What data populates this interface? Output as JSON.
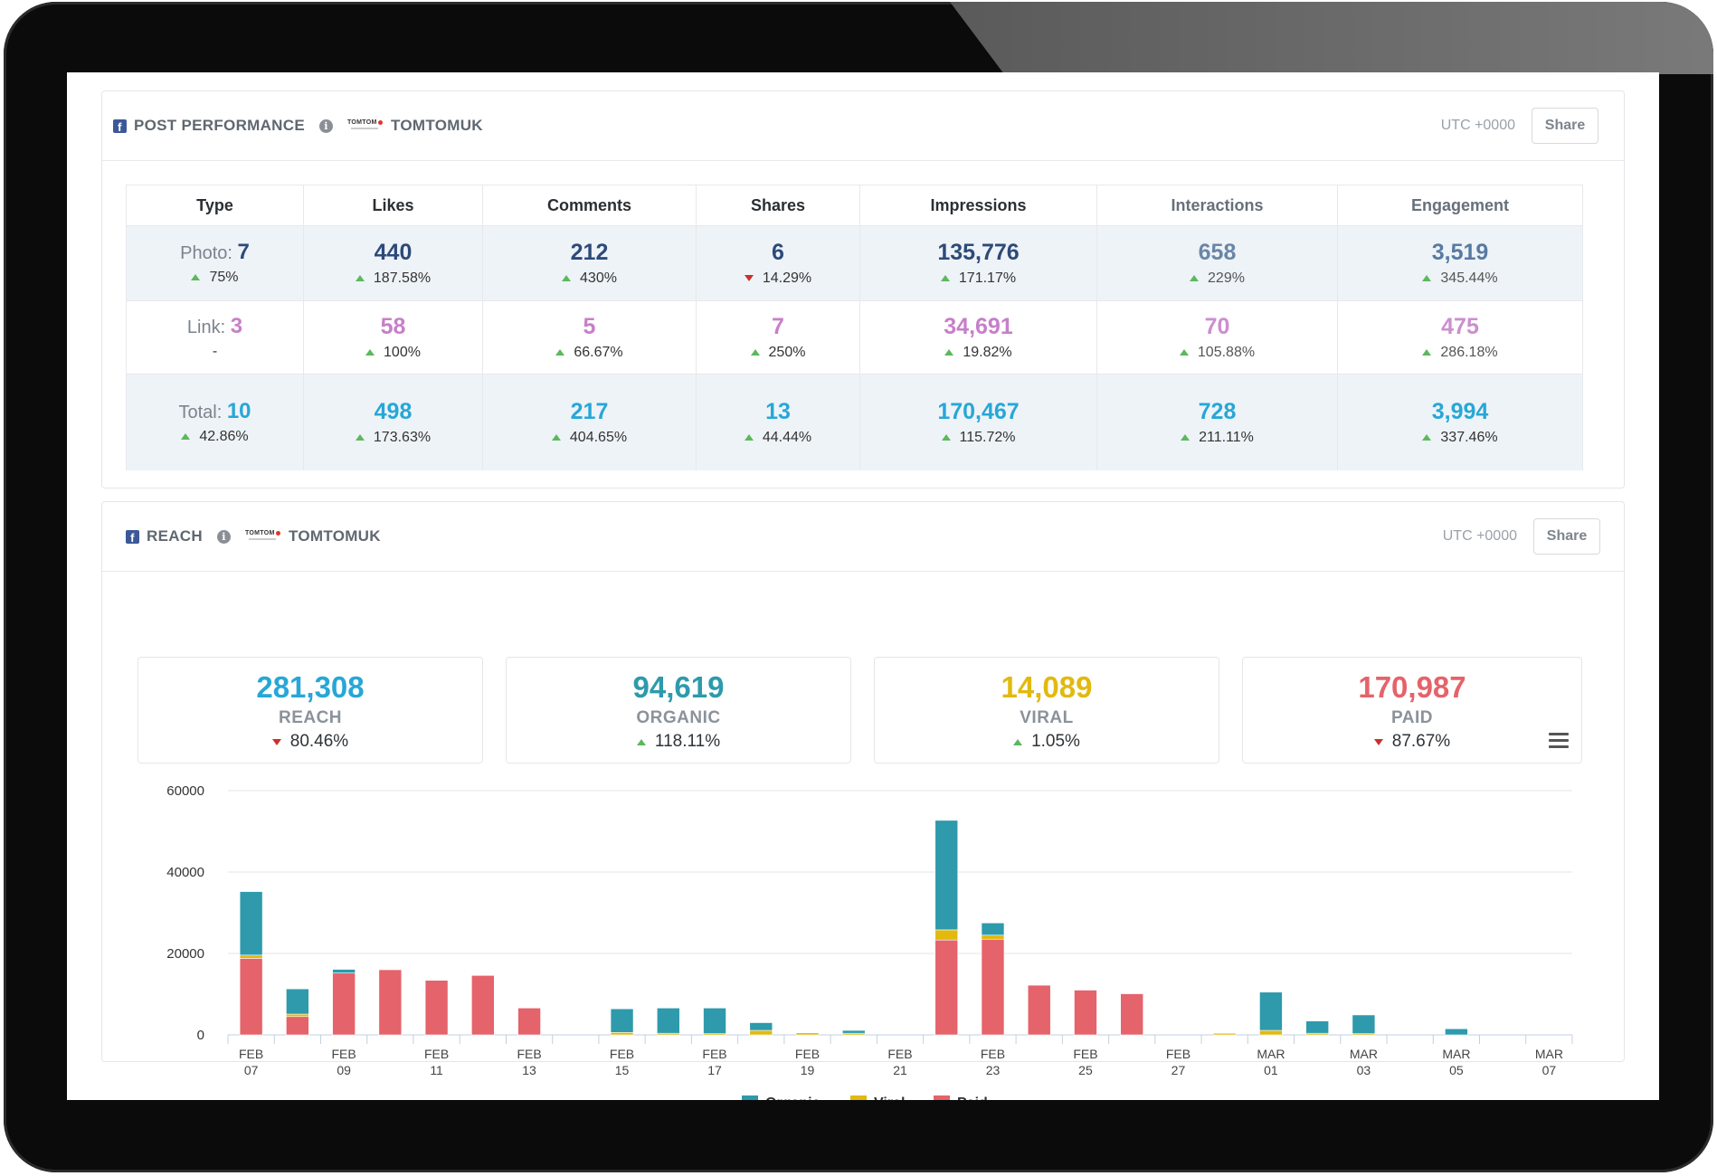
{
  "post_performance": {
    "title": "POST PERFORMANCE",
    "account": "TOMTOMUK",
    "timezone": "UTC +0000",
    "share_label": "Share",
    "columns": [
      "Type",
      "Likes",
      "Comments",
      "Shares",
      "Impressions",
      "Interactions",
      "Engagement"
    ],
    "rows": [
      {
        "type_label": "Photo: ",
        "type_count": "7",
        "type_change": "75%",
        "type_dir": "up",
        "cells": [
          {
            "value": "440",
            "change": "187.58%",
            "dir": "up"
          },
          {
            "value": "212",
            "change": "430%",
            "dir": "up"
          },
          {
            "value": "6",
            "change": "14.29%",
            "dir": "down"
          },
          {
            "value": "135,776",
            "change": "171.17%",
            "dir": "up"
          },
          {
            "value": "658",
            "change": "229%",
            "dir": "up"
          },
          {
            "value": "3,519",
            "change": "345.44%",
            "dir": "up"
          }
        ]
      },
      {
        "type_label": "Link: ",
        "type_count": "3",
        "type_change": "-",
        "type_dir": "none",
        "cells": [
          {
            "value": "58",
            "change": "100%",
            "dir": "up"
          },
          {
            "value": "5",
            "change": "66.67%",
            "dir": "up"
          },
          {
            "value": "7",
            "change": "250%",
            "dir": "up"
          },
          {
            "value": "34,691",
            "change": "19.82%",
            "dir": "up"
          },
          {
            "value": "70",
            "change": "105.88%",
            "dir": "up"
          },
          {
            "value": "475",
            "change": "286.18%",
            "dir": "up"
          }
        ]
      },
      {
        "type_label": "Total: ",
        "type_count": "10",
        "type_change": "42.86%",
        "type_dir": "up",
        "cells": [
          {
            "value": "498",
            "change": "173.63%",
            "dir": "up"
          },
          {
            "value": "217",
            "change": "404.65%",
            "dir": "up"
          },
          {
            "value": "13",
            "change": "44.44%",
            "dir": "up"
          },
          {
            "value": "170,467",
            "change": "115.72%",
            "dir": "up"
          },
          {
            "value": "728",
            "change": "211.11%",
            "dir": "up"
          },
          {
            "value": "3,994",
            "change": "337.46%",
            "dir": "up"
          }
        ]
      }
    ]
  },
  "reach": {
    "title": "REACH",
    "account": "TOMTOMUK",
    "timezone": "UTC +0000",
    "share_label": "Share",
    "cards": [
      {
        "value": "281,308",
        "label": "REACH",
        "change": "80.46%",
        "dir": "down",
        "color": "#27a7d6"
      },
      {
        "value": "94,619",
        "label": "ORGANIC",
        "change": "118.11%",
        "dir": "up",
        "color": "#2e9aac"
      },
      {
        "value": "14,089",
        "label": "VIRAL",
        "change": "1.05%",
        "dir": "up",
        "color": "#e2b90f"
      },
      {
        "value": "170,987",
        "label": "PAID",
        "change": "87.67%",
        "dir": "down",
        "color": "#e5636a"
      }
    ]
  },
  "chart_data": {
    "type": "bar",
    "stacked": true,
    "title": "",
    "xlabel": "",
    "ylabel": "",
    "ylim": [
      0,
      60000
    ],
    "yticks": [
      0,
      20000,
      40000,
      60000
    ],
    "categories": [
      "FEB 07",
      "FEB 08",
      "FEB 09",
      "FEB 10",
      "FEB 11",
      "FEB 12",
      "FEB 13",
      "FEB 14",
      "FEB 15",
      "FEB 16",
      "FEB 17",
      "FEB 18",
      "FEB 19",
      "FEB 20",
      "FEB 21",
      "FEB 22",
      "FEB 23",
      "FEB 24",
      "FEB 25",
      "FEB 26",
      "FEB 27",
      "FEB 28",
      "MAR 01",
      "MAR 02",
      "MAR 03",
      "MAR 04",
      "MAR 05",
      "MAR 06",
      "MAR 07"
    ],
    "tick_labels": [
      {
        "index": 0,
        "month": "FEB",
        "day": "07"
      },
      {
        "index": 2,
        "month": "FEB",
        "day": "09"
      },
      {
        "index": 4,
        "month": "FEB",
        "day": "11"
      },
      {
        "index": 6,
        "month": "FEB",
        "day": "13"
      },
      {
        "index": 8,
        "month": "FEB",
        "day": "15"
      },
      {
        "index": 10,
        "month": "FEB",
        "day": "17"
      },
      {
        "index": 12,
        "month": "FEB",
        "day": "19"
      },
      {
        "index": 14,
        "month": "FEB",
        "day": "21"
      },
      {
        "index": 16,
        "month": "FEB",
        "day": "23"
      },
      {
        "index": 18,
        "month": "FEB",
        "day": "25"
      },
      {
        "index": 20,
        "month": "FEB",
        "day": "27"
      },
      {
        "index": 22,
        "month": "MAR",
        "day": "01"
      },
      {
        "index": 24,
        "month": "MAR",
        "day": "03"
      },
      {
        "index": 26,
        "month": "MAR",
        "day": "05"
      },
      {
        "index": 28,
        "month": "MAR",
        "day": "07"
      }
    ],
    "series": [
      {
        "name": "Paid",
        "color": "#e5636a",
        "values": [
          18800,
          4500,
          15200,
          16000,
          13400,
          14600,
          6600,
          0,
          0,
          0,
          0,
          0,
          0,
          0,
          0,
          23300,
          23500,
          12200,
          11000,
          10100,
          0,
          0,
          0,
          0,
          0,
          0,
          0,
          0,
          0
        ]
      },
      {
        "name": "Viral",
        "color": "#e2b90f",
        "values": [
          800,
          600,
          0,
          0,
          0,
          0,
          0,
          0,
          600,
          400,
          300,
          1100,
          500,
          400,
          0,
          2500,
          1000,
          0,
          0,
          0,
          0,
          400,
          1100,
          400,
          300,
          0,
          0,
          0,
          0
        ]
      },
      {
        "name": "Organic",
        "color": "#2e9aac",
        "values": [
          15600,
          6200,
          900,
          0,
          0,
          0,
          0,
          0,
          5800,
          6200,
          6300,
          1900,
          0,
          700,
          0,
          26900,
          3000,
          0,
          0,
          0,
          0,
          0,
          9400,
          3000,
          4600,
          0,
          1500,
          0,
          0
        ]
      }
    ],
    "legend": [
      "Organic",
      "Viral",
      "Paid"
    ],
    "legend_position": "bottom-center"
  }
}
